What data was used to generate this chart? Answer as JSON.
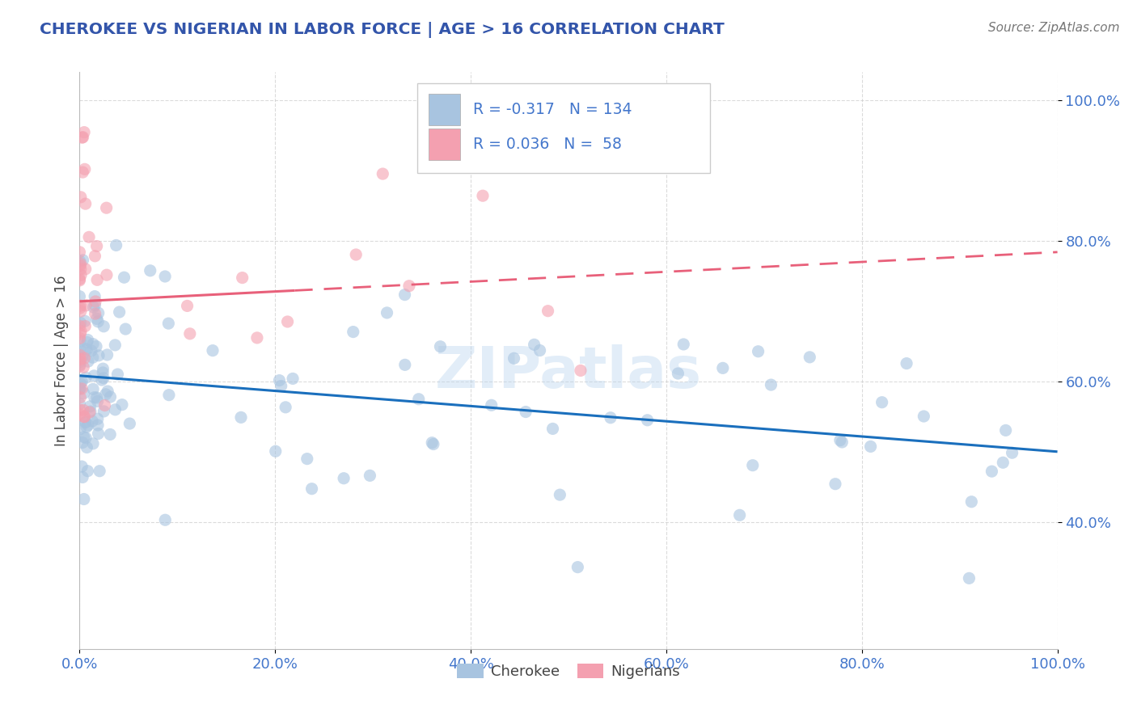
{
  "title": "CHEROKEE VS NIGERIAN IN LABOR FORCE | AGE > 16 CORRELATION CHART",
  "source": "Source: ZipAtlas.com",
  "ylabel": "In Labor Force | Age > 16",
  "xlim": [
    0.0,
    1.0
  ],
  "ylim": [
    0.22,
    1.04
  ],
  "xticks": [
    0.0,
    0.2,
    0.4,
    0.6,
    0.8,
    1.0
  ],
  "yticks": [
    0.4,
    0.6,
    0.8,
    1.0
  ],
  "xtick_labels": [
    "0.0%",
    "20.0%",
    "40.0%",
    "60.0%",
    "80.0%",
    "100.0%"
  ],
  "ytick_labels": [
    "40.0%",
    "60.0%",
    "80.0%",
    "100.0%"
  ],
  "legend_r_cherokee": "-0.317",
  "legend_n_cherokee": "134",
  "legend_r_nigerian": "0.036",
  "legend_n_nigerian": "58",
  "cherokee_color": "#a8c4e0",
  "nigerian_color": "#f4a0b0",
  "cherokee_line_color": "#1a6fbd",
  "nigerian_line_color": "#e8607a",
  "background_color": "#ffffff",
  "grid_color": "#cccccc",
  "title_color": "#3355aa",
  "tick_color": "#4477cc",
  "source_color": "#777777",
  "watermark": "ZIPatlas",
  "cherokee_seed": 123,
  "nigerian_seed": 456
}
